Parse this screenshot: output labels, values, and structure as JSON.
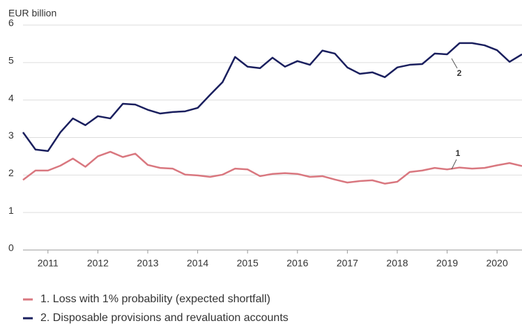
{
  "chart_data": {
    "type": "line",
    "y_label": "EUR billion",
    "x": [
      2011,
      2011.25,
      2011.5,
      2011.75,
      2012,
      2012.25,
      2012.5,
      2012.75,
      2013,
      2013.25,
      2013.5,
      2013.75,
      2014,
      2014.25,
      2014.5,
      2014.75,
      2015,
      2015.25,
      2015.5,
      2015.75,
      2016,
      2016.25,
      2016.5,
      2016.75,
      2017,
      2017.25,
      2017.5,
      2017.75,
      2018,
      2018.25,
      2018.5,
      2018.75,
      2019,
      2019.25,
      2019.5,
      2019.75,
      2020,
      2020.25,
      2020.5,
      2020.75,
      2021
    ],
    "series": [
      {
        "name": "1. Loss with 1% probability (expected shortfall)",
        "color": "#d9777f",
        "values": [
          1.87,
          2.12,
          2.12,
          2.25,
          2.44,
          2.22,
          2.5,
          2.62,
          2.48,
          2.57,
          2.27,
          2.19,
          2.17,
          2.01,
          1.99,
          1.95,
          2.01,
          2.17,
          2.15,
          1.97,
          2.03,
          2.05,
          2.03,
          1.95,
          1.97,
          1.88,
          1.8,
          1.84,
          1.86,
          1.77,
          1.82,
          2.08,
          2.12,
          2.19,
          2.15,
          2.2,
          2.17,
          2.19,
          2.26,
          2.32,
          2.24
        ]
      },
      {
        "name": "2. Disposable provisions and revaluation accounts",
        "color": "#1a1f5e",
        "values": [
          3.14,
          2.68,
          2.64,
          3.14,
          3.51,
          3.33,
          3.57,
          3.51,
          3.9,
          3.88,
          3.74,
          3.64,
          3.68,
          3.7,
          3.79,
          4.14,
          4.48,
          5.15,
          4.89,
          4.85,
          5.13,
          4.89,
          5.04,
          4.94,
          5.32,
          5.24,
          4.87,
          4.7,
          4.74,
          4.61,
          4.87,
          4.94,
          4.96,
          5.24,
          5.22,
          5.52,
          5.52,
          5.46,
          5.33,
          5.02,
          5.22
        ]
      }
    ],
    "annotations": [
      "1",
      "2"
    ],
    "xlim": [
      2011,
      2021
    ],
    "xticks": [
      {
        "value": 2011.5,
        "label": "2011"
      },
      {
        "value": 2012.5,
        "label": "2012"
      },
      {
        "value": 2013.5,
        "label": "2013"
      },
      {
        "value": 2014.5,
        "label": "2014"
      },
      {
        "value": 2015.5,
        "label": "2015"
      },
      {
        "value": 2016.5,
        "label": "2016"
      },
      {
        "value": 2017.5,
        "label": "2017"
      },
      {
        "value": 2018.5,
        "label": "2018"
      },
      {
        "value": 2019.5,
        "label": "2019"
      },
      {
        "value": 2020.5,
        "label": "2020"
      }
    ],
    "ylim": [
      0,
      6
    ],
    "yticks": [
      0,
      1,
      2,
      3,
      4,
      5,
      6
    ],
    "grid": true
  }
}
